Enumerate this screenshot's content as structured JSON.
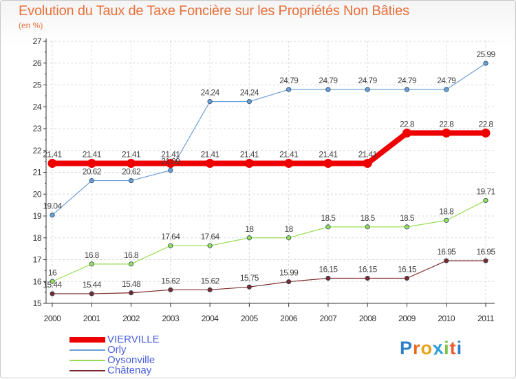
{
  "chart_data": {
    "type": "line",
    "title": "Evolution du Taux de Taxe Foncière sur les Propriétés Non Bâties",
    "ylabel": "(en %)",
    "xlabel": "",
    "ylim": [
      15,
      27
    ],
    "yticks": [
      15,
      16,
      17,
      18,
      19,
      20,
      21,
      22,
      23,
      24,
      25,
      26,
      27
    ],
    "categories": [
      "2000",
      "2001",
      "2002",
      "2003",
      "2004",
      "2005",
      "2006",
      "2007",
      "2008",
      "2009",
      "2010",
      "2011"
    ],
    "grid": true,
    "series": [
      {
        "name": "VIERVILLE",
        "color": "#ee0000",
        "values": [
          21.41,
          21.41,
          21.41,
          21.41,
          21.41,
          21.41,
          21.41,
          21.41,
          21.41,
          22.8,
          22.8,
          22.8
        ],
        "labels": [
          "21.41",
          "21.41",
          "21.41",
          "21.41",
          "21.41",
          "21.41",
          "21.41",
          "21.41",
          "21.41",
          "22.8",
          "22.8",
          "22.8"
        ]
      },
      {
        "name": "Orly",
        "color": "#6a9fd4",
        "values": [
          19.04,
          20.62,
          20.62,
          21.09,
          24.24,
          24.24,
          24.79,
          24.79,
          24.79,
          24.79,
          24.79,
          25.99
        ],
        "labels": [
          "19.04",
          "20.62",
          "20.62",
          "21.09",
          "24.24",
          "24.24",
          "24.79",
          "24.79",
          "24.79",
          "24.79",
          "24.79",
          "25.99"
        ]
      },
      {
        "name": "Oysonville",
        "color": "#99dd55",
        "values": [
          16,
          16.8,
          16.8,
          17.64,
          17.64,
          18,
          18,
          18.5,
          18.5,
          18.5,
          18.8,
          19.71
        ],
        "labels": [
          "16",
          "16.8",
          "16.8",
          "17.64",
          "17.64",
          "18",
          "18",
          "18.5",
          "18.5",
          "18.5",
          "18.8",
          "19.71"
        ]
      },
      {
        "name": "Châtenay",
        "color": "#7a2a2a",
        "values": [
          15.44,
          15.44,
          15.48,
          15.62,
          15.62,
          15.75,
          15.99,
          16.15,
          16.15,
          16.15,
          16.95,
          16.95
        ],
        "labels": [
          "15.44",
          "15.44",
          "15.48",
          "15.62",
          "15.62",
          "15.75",
          "15.99",
          "16.15",
          "16.15",
          "16.15",
          "16.95",
          "16.95"
        ]
      }
    ],
    "legend_position": "bottom-left"
  },
  "logo": {
    "letters": [
      "P",
      "r",
      "o",
      "x",
      "i",
      "t",
      "i"
    ],
    "colors": [
      "#2e7fc8",
      "#e86a1a",
      "#e8a21a",
      "#2e9fd8",
      "#7cc242",
      "#e85a2a",
      "#2e7fc8"
    ]
  }
}
